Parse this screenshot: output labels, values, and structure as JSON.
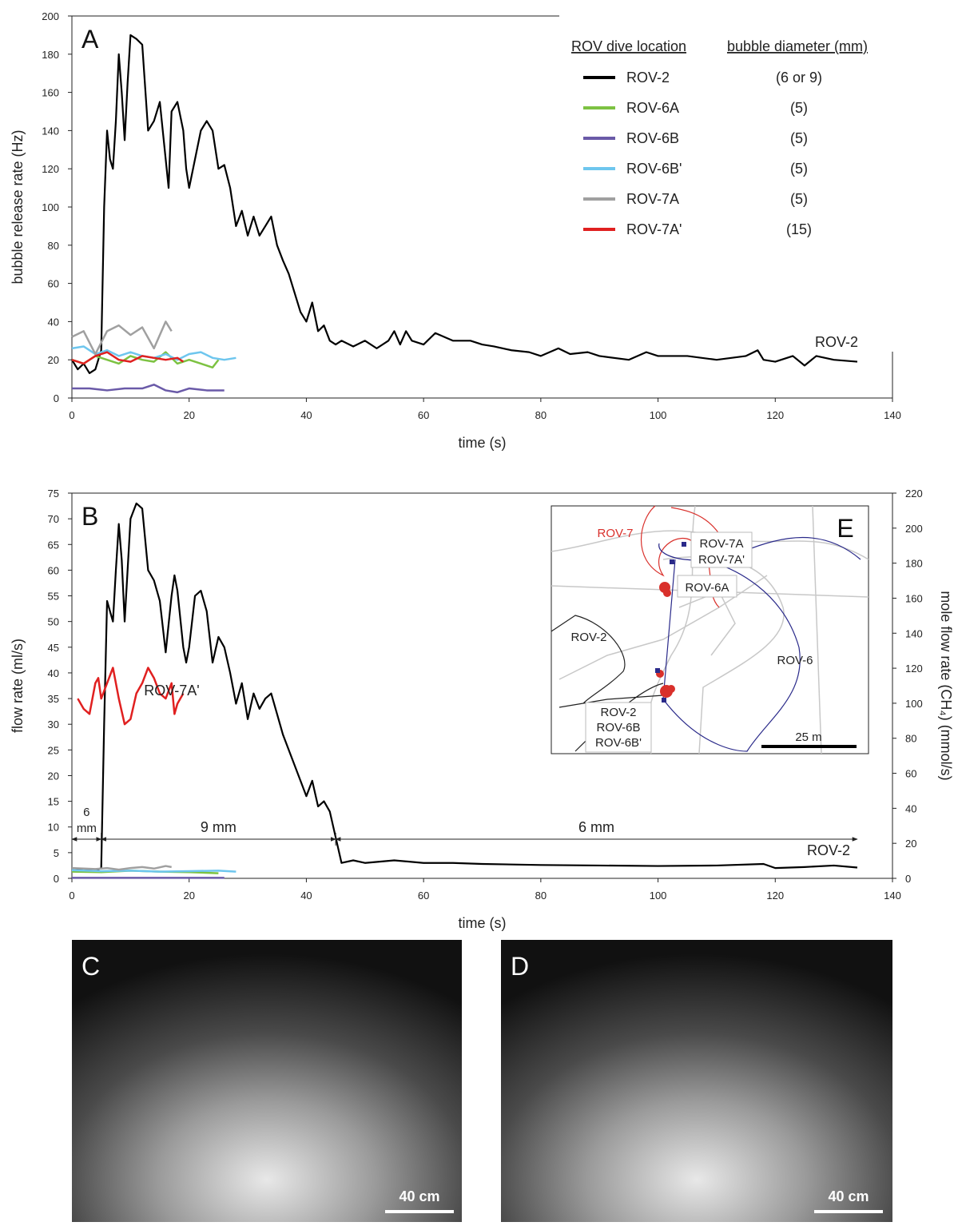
{
  "chart_data": [
    {
      "type": "line",
      "panel": "A",
      "xlabel": "time (s)",
      "ylabel": "bubble release rate (Hz)",
      "xlim": [
        0,
        140
      ],
      "xticks": [
        0,
        20,
        40,
        60,
        80,
        100,
        120,
        140
      ],
      "ylim": [
        0,
        200
      ],
      "yticks": [
        0,
        20,
        40,
        60,
        80,
        100,
        120,
        140,
        160,
        180,
        200
      ],
      "legend": {
        "headers": [
          "ROV dive location",
          "bubble diameter (mm)"
        ],
        "corner": "upper right"
      },
      "series": [
        {
          "name": "ROV-2",
          "color": "#000000",
          "diameter": "(6 or 9)",
          "x": [
            0,
            1,
            2,
            3,
            4,
            5,
            5.5,
            6,
            6.5,
            7,
            7.5,
            8,
            8.5,
            9,
            9.5,
            10,
            11,
            12,
            13,
            14,
            15,
            16,
            16.5,
            17,
            18,
            19,
            19.5,
            20,
            21,
            22,
            23,
            24,
            25,
            26,
            27,
            28,
            29,
            30,
            31,
            32,
            33,
            34,
            35,
            36,
            37,
            38,
            39,
            40,
            41,
            42,
            43,
            44,
            45,
            46,
            48,
            50,
            52,
            54,
            55,
            56,
            57,
            58,
            60,
            62,
            65,
            68,
            70,
            72,
            75,
            78,
            80,
            83,
            85,
            88,
            90,
            95,
            98,
            100,
            105,
            110,
            115,
            117,
            118,
            120,
            123,
            125,
            127,
            130,
            134
          ],
          "values": [
            20,
            15,
            18,
            13,
            15,
            25,
            100,
            140,
            125,
            120,
            145,
            180,
            160,
            135,
            165,
            190,
            188,
            185,
            140,
            145,
            155,
            125,
            110,
            150,
            155,
            140,
            120,
            110,
            125,
            140,
            145,
            140,
            120,
            122,
            110,
            90,
            98,
            85,
            95,
            85,
            90,
            95,
            80,
            72,
            65,
            55,
            45,
            40,
            50,
            35,
            38,
            30,
            28,
            30,
            27,
            30,
            26,
            30,
            35,
            28,
            35,
            30,
            28,
            34,
            30,
            30,
            28,
            27,
            25,
            24,
            22,
            26,
            23,
            24,
            22,
            20,
            24,
            22,
            22,
            20,
            22,
            25,
            20,
            19,
            22,
            17,
            22,
            20,
            19
          ]
        },
        {
          "name": "ROV-6A",
          "color": "#7dc242",
          "diameter": "(5)",
          "x": [
            0,
            2,
            4,
            6,
            8,
            10,
            12,
            14,
            16,
            18,
            20,
            22,
            24,
            25
          ],
          "values": [
            20,
            18,
            22,
            20,
            18,
            22,
            20,
            19,
            24,
            18,
            20,
            18,
            16,
            20
          ]
        },
        {
          "name": "ROV-6B",
          "color": "#6a5aa8",
          "diameter": "(5)",
          "x": [
            0,
            3,
            6,
            9,
            12,
            14,
            16,
            18,
            20,
            23,
            26
          ],
          "values": [
            5,
            5,
            4,
            5,
            5,
            7,
            4,
            3,
            5,
            4,
            4
          ]
        },
        {
          "name": "ROV-6B'",
          "color": "#6ec6ee",
          "diameter": "(5)",
          "x": [
            0,
            2,
            4,
            6,
            8,
            10,
            12,
            14,
            16,
            18,
            20,
            22,
            24,
            26,
            28
          ],
          "values": [
            26,
            27,
            23,
            25,
            22,
            24,
            22,
            21,
            23,
            20,
            23,
            24,
            21,
            20,
            21
          ]
        },
        {
          "name": "ROV-7A",
          "color": "#a0a0a0",
          "diameter": "(5)",
          "x": [
            0,
            2,
            4,
            6,
            8,
            10,
            12,
            14,
            16,
            17
          ],
          "values": [
            32,
            35,
            23,
            35,
            38,
            33,
            37,
            26,
            40,
            35
          ]
        },
        {
          "name": "ROV-7A'",
          "color": "#e02020",
          "diameter": "(15)",
          "x": [
            0,
            2,
            4,
            6,
            8,
            10,
            12,
            14,
            16,
            18,
            19
          ],
          "values": [
            20,
            18,
            22,
            24,
            20,
            19,
            22,
            21,
            20,
            21,
            19
          ]
        }
      ],
      "annotations": [
        "ROV-2"
      ]
    },
    {
      "type": "line",
      "panel": "B",
      "xlabel": "time (s)",
      "ylabel": "flow rate (ml/s)",
      "y2label": "mole flow rate (CH₄) (mmol/s)",
      "xlim": [
        0,
        140
      ],
      "xticks": [
        0,
        20,
        40,
        60,
        80,
        100,
        120,
        140
      ],
      "ylim": [
        0,
        75
      ],
      "yticks": [
        0,
        5,
        10,
        15,
        20,
        25,
        30,
        35,
        40,
        45,
        50,
        55,
        60,
        65,
        70,
        75
      ],
      "y2lim": [
        0,
        220
      ],
      "y2ticks": [
        0,
        20,
        40,
        60,
        80,
        100,
        120,
        140,
        160,
        180,
        200,
        220
      ],
      "series": [
        {
          "name": "ROV-2",
          "color": "#000000",
          "x": [
            0,
            4,
            5,
            5.5,
            6,
            6.5,
            7,
            7.5,
            8,
            8.5,
            9,
            9.5,
            10,
            11,
            12,
            13,
            14,
            15,
            16,
            17,
            17.5,
            18,
            19,
            19.5,
            20,
            21,
            22,
            23,
            24,
            25,
            26,
            27,
            28,
            29,
            30,
            31,
            32,
            33,
            34,
            35,
            36,
            37,
            38,
            39,
            40,
            41,
            42,
            43,
            44,
            45,
            46,
            48,
            50,
            55,
            60,
            65,
            70,
            80,
            90,
            100,
            110,
            118,
            120,
            125,
            130,
            134
          ],
          "values": [
            2,
            1.5,
            2,
            30,
            54,
            52,
            50,
            60,
            69,
            62,
            50,
            60,
            70,
            73,
            72,
            60,
            58,
            54,
            44,
            55,
            59,
            56,
            45,
            42,
            45,
            55,
            56,
            52,
            42,
            47,
            45,
            40,
            34,
            38,
            31,
            36,
            33,
            35,
            36,
            32,
            28,
            25,
            22,
            19,
            16,
            19,
            14,
            15,
            13,
            8,
            3,
            3.5,
            3,
            3.5,
            3,
            3,
            2.8,
            2.6,
            2.5,
            2.4,
            2.5,
            2.8,
            2,
            2.2,
            2.5,
            2.1
          ]
        },
        {
          "name": "ROV-6A",
          "color": "#7dc242",
          "x": [
            0,
            5,
            10,
            15,
            20,
            25
          ],
          "values": [
            1.3,
            1.2,
            1.5,
            1.3,
            1.2,
            1
          ]
        },
        {
          "name": "ROV-6B",
          "color": "#6a5aa8",
          "x": [
            0,
            26
          ],
          "values": [
            0.1,
            0.1
          ]
        },
        {
          "name": "ROV-6B'",
          "color": "#6ec6ee",
          "x": [
            0,
            5,
            10,
            15,
            20,
            25,
            28
          ],
          "values": [
            1.6,
            1.4,
            1.5,
            1.3,
            1.4,
            1.5,
            1.3
          ]
        },
        {
          "name": "ROV-7A",
          "color": "#a0a0a0",
          "x": [
            0,
            4,
            6,
            8,
            10,
            12,
            14,
            16,
            17
          ],
          "values": [
            2,
            1.8,
            2,
            1.7,
            2,
            2.2,
            1.9,
            2.4,
            2.2
          ]
        },
        {
          "name": "ROV-7A'",
          "color": "#e02020",
          "x": [
            1,
            2,
            3,
            4,
            4.5,
            5,
            6,
            7,
            8,
            9,
            10,
            11,
            12,
            13,
            14,
            15,
            16,
            17,
            17.5,
            18,
            19
          ],
          "values": [
            35,
            33,
            32,
            38,
            39,
            35,
            38,
            41,
            35,
            30,
            31,
            36,
            38,
            41,
            39,
            36,
            35,
            38,
            32,
            34,
            36
          ]
        }
      ],
      "spans": [
        {
          "label": [
            "6",
            "mm"
          ],
          "from": 0,
          "to": 5
        },
        {
          "label": [
            "9 mm"
          ],
          "from": 5,
          "to": 45
        },
        {
          "label": [
            "6 mm"
          ],
          "from": 45,
          "to": 134
        }
      ],
      "annotations": [
        "ROV-7A'",
        "ROV-2"
      ]
    }
  ],
  "map": {
    "panel": "E",
    "labels": [
      "ROV-7",
      "ROV-7A",
      "ROV-7A'",
      "ROV-6A",
      "ROV-2",
      "ROV-6",
      "ROV-2",
      "ROV-6B",
      "ROV-6B'"
    ],
    "scale": "25 m"
  },
  "photos": [
    {
      "panel": "C",
      "scale": "40 cm"
    },
    {
      "panel": "D",
      "scale": "40 cm"
    }
  ]
}
